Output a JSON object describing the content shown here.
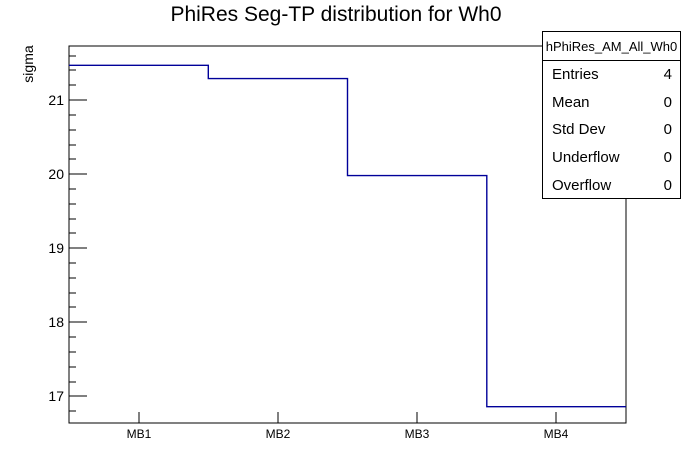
{
  "chart_data": {
    "type": "bar",
    "style": "root-step-histogram",
    "title": "PhiRes Seg-TP distribution for Wh0",
    "xlabel": "",
    "ylabel": "sigma",
    "categories": [
      "MB1",
      "MB2",
      "MB3",
      "MB4"
    ],
    "values": [
      21.47,
      21.29,
      19.98,
      16.86
    ],
    "ylim": [
      16.64,
      21.73
    ],
    "yticks": [
      17,
      18,
      19,
      20,
      21
    ],
    "minor_tick_step": 0.2,
    "grid": false,
    "legend_position": "none",
    "line_color": "#000099",
    "frame_color": "#000000"
  },
  "stats_box": {
    "title": "hPhiRes_AM_All_Wh0",
    "rows": [
      {
        "label": "Entries",
        "value": "4"
      },
      {
        "label": "Mean",
        "value": "0"
      },
      {
        "label": "Std Dev",
        "value": "0"
      },
      {
        "label": "Underflow",
        "value": "0"
      },
      {
        "label": "Overflow",
        "value": "0"
      }
    ]
  }
}
